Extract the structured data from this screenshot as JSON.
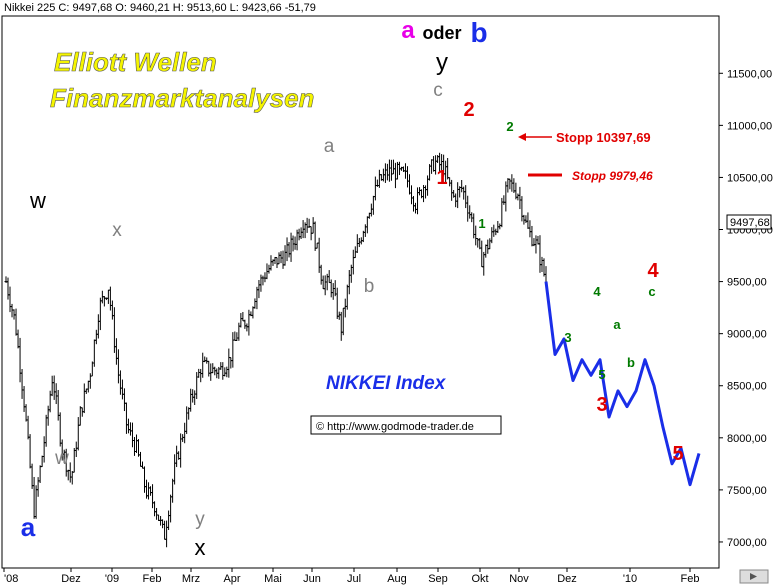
{
  "header": {
    "text": "Nikkei 225 C: 9497,68 O: 9460,21 H: 9513,60 L: 9423,66 -51,79"
  },
  "title": {
    "line1": "Elliott Wellen",
    "line2": "Finanzmarktanalysen",
    "index_label": "NIKKEI Index",
    "copyright": "© http://www.godmode-trader.de"
  },
  "colors": {
    "price": "#000000",
    "projection": "#1a2ee8",
    "label_gray": "#808080",
    "label_red": "#e00000",
    "label_green": "#007a00",
    "label_blue": "#1a2ee8",
    "label_magenta": "#e800e8",
    "title_yellow": "#f5f500",
    "index_blue": "#1a2ee8"
  },
  "chart_data": {
    "type": "line",
    "title": "",
    "xlabel": "",
    "ylabel": "",
    "ylim": [
      6750,
      12050
    ],
    "x_tick_labels": [
      "'08",
      "Dez",
      "'09",
      "Feb",
      "Mrz",
      "Apr",
      "Mai",
      "Jun",
      "Jul",
      "Aug",
      "Sep",
      "Okt",
      "Nov",
      "Dez",
      "'10",
      "Feb"
    ],
    "y_tick_labels": [
      "7000,00",
      "7500,00",
      "8000,00",
      "8500,00",
      "9000,00",
      "9500,00",
      "10000,00",
      "10500,00",
      "11000,00",
      "11500,00"
    ],
    "last_price_label": "9497,68",
    "series": [
      {
        "values": [
          9500,
          9100,
          8300,
          7300,
          7900,
          8600,
          7900,
          7600,
          8250,
          8600,
          9250,
          9450,
          8650,
          8100,
          7900,
          7500,
          7350,
          7050,
          7650,
          8050,
          8400,
          8700,
          8650,
          8650,
          8750,
          9050,
          9150,
          9450,
          9600,
          9700,
          9750,
          9900,
          10100,
          10000,
          9500,
          9450,
          9050,
          9600,
          9900,
          10200,
          10450,
          10550,
          10550,
          10500,
          10250,
          10450,
          10650,
          10600,
          10300,
          10400,
          10100,
          9700,
          9900,
          10100,
          10450,
          10350,
          10000,
          9850,
          9500
        ]
      },
      {
        "values": [
          9500,
          8800,
          8950,
          8550,
          8750,
          8600,
          8750,
          8200,
          8450,
          8300,
          8450,
          8750,
          8500,
          8100,
          7750,
          7900,
          7550,
          7850
        ]
      }
    ],
    "annotations": [
      {
        "text": "w"
      },
      {
        "text": "a"
      },
      {
        "text": "w"
      },
      {
        "text": "x"
      },
      {
        "text": "y"
      },
      {
        "text": "x"
      },
      {
        "text": "a"
      },
      {
        "text": "b"
      },
      {
        "text": "c"
      },
      {
        "text": "y"
      },
      {
        "text": "a"
      },
      {
        "text": "oder"
      },
      {
        "text": "b"
      },
      {
        "text": "1"
      },
      {
        "text": "2"
      },
      {
        "text": "1"
      },
      {
        "text": "2"
      },
      {
        "text": "3"
      },
      {
        "text": "4"
      },
      {
        "text": "5"
      },
      {
        "text": "a"
      },
      {
        "text": "b"
      },
      {
        "text": "c"
      },
      {
        "text": "4"
      },
      {
        "text": "3"
      },
      {
        "text": "5"
      }
    ],
    "stops": [
      {
        "text": "Stopp 10397,69",
        "value": 10397.69
      },
      {
        "text": "Stopp 9979,46",
        "value": 9979.46
      }
    ]
  }
}
